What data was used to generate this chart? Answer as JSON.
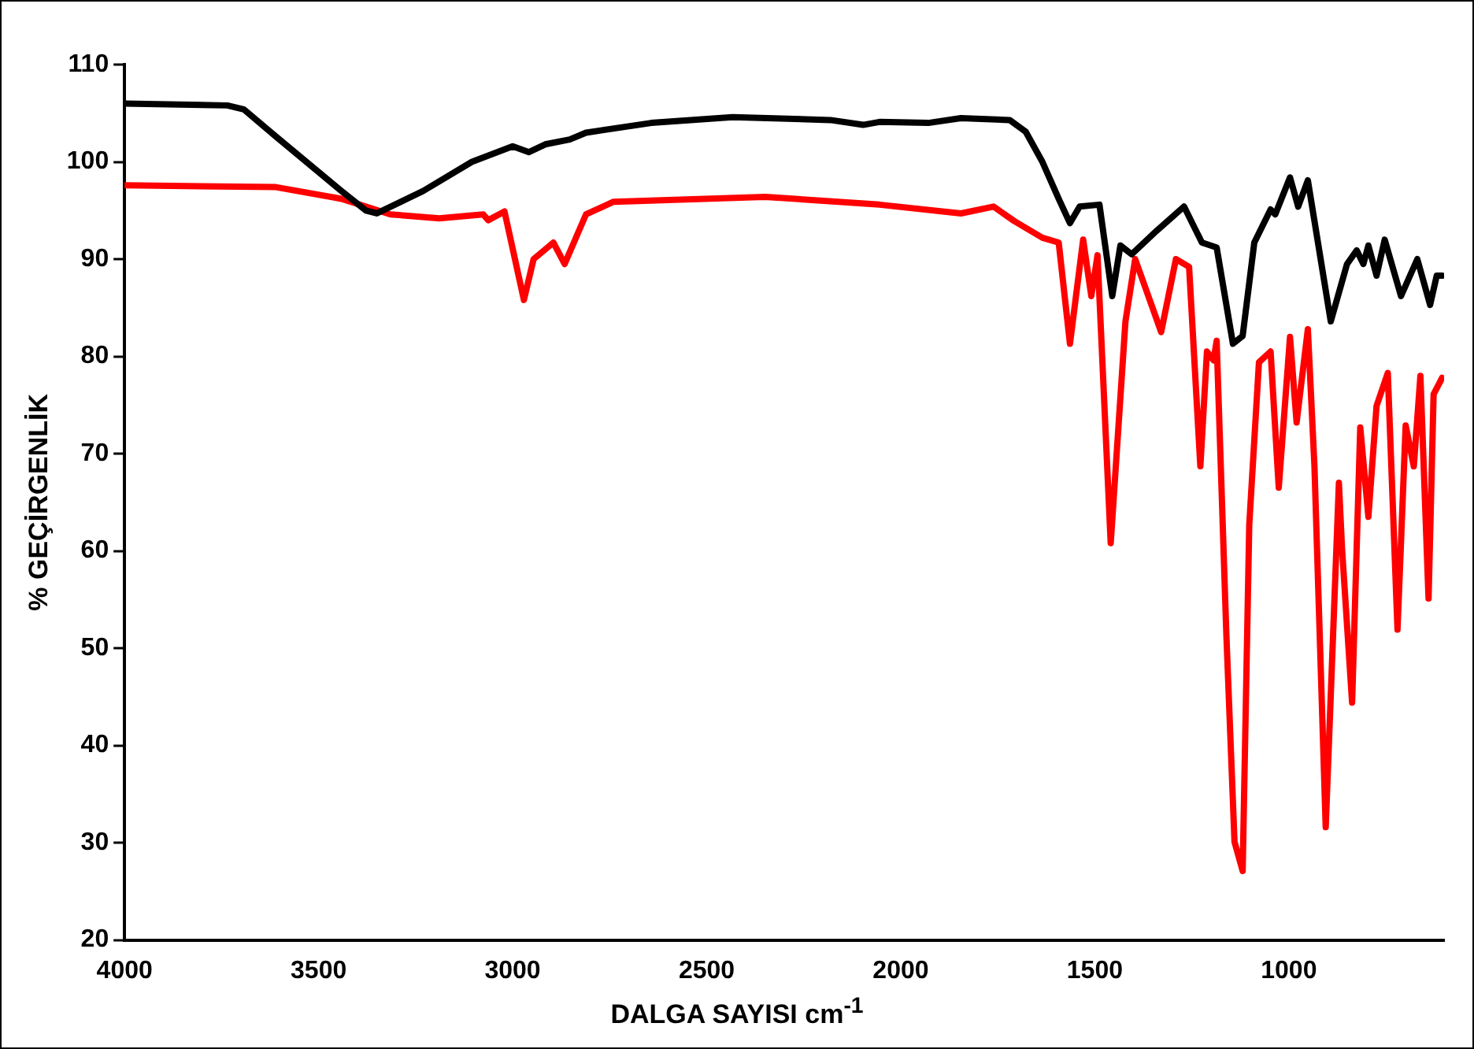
{
  "chart_data": {
    "type": "line",
    "xlabel": "DALGA SAYISI cm$^{-1}$",
    "ylabel": "% GEÇİRGENLİK",
    "xlim": [
      4000,
      600
    ],
    "xticks": [
      4000,
      3500,
      3000,
      2500,
      2000,
      1500,
      1000
    ],
    "ylim": [
      20,
      110
    ],
    "yticks": [
      20,
      30,
      40,
      50,
      60,
      70,
      80,
      90,
      100,
      110
    ],
    "grid": false,
    "legend": false,
    "marker": "none",
    "line_style": "solid",
    "series": [
      {
        "color": "#000000",
        "x": [
          4000,
          3735,
          3693,
          3610,
          3441,
          3378,
          3350,
          3231,
          3105,
          3000,
          2958,
          2916,
          2853,
          2811,
          2643,
          2433,
          2181,
          2097,
          2055,
          1929,
          1845,
          1719,
          1678,
          1635,
          1593,
          1564,
          1539,
          1488,
          1455,
          1434,
          1405,
          1341,
          1270,
          1224,
          1186,
          1144,
          1119,
          1089,
          1047,
          1035,
          997,
          976,
          951,
          892,
          850,
          825,
          808,
          795,
          774,
          753,
          711,
          669,
          636,
          619,
          605
        ],
        "values": [
          106,
          105.8,
          105.4,
          102.6,
          97,
          95,
          94.7,
          97,
          100,
          101.6,
          101,
          101.8,
          102.3,
          103,
          104,
          104.6,
          104.3,
          103.8,
          104.1,
          104,
          104.5,
          104.3,
          103.1,
          100,
          96.2,
          93.7,
          95.4,
          95.6,
          86.2,
          91.4,
          90.5,
          92.9,
          95.4,
          91.7,
          91.2,
          81.3,
          82.1,
          91.7,
          95.1,
          94.6,
          98.4,
          95.4,
          98.1,
          83.6,
          89.5,
          90.9,
          89.5,
          91.4,
          88.3,
          92,
          86.2,
          90,
          85.3,
          88.3,
          88.3
        ]
      },
      {
        "color": "#ff0000",
        "x": [
          4000,
          3610,
          3441,
          3315,
          3189,
          3076,
          3063,
          3021,
          2971,
          2946,
          2895,
          2866,
          2811,
          2740,
          2349,
          2055,
          1845,
          1761,
          1707,
          1635,
          1593,
          1564,
          1530,
          1509,
          1493,
          1459,
          1421,
          1396,
          1329,
          1291,
          1257,
          1228,
          1211,
          1194,
          1186,
          1161,
          1140,
          1119,
          1102,
          1077,
          1047,
          1026,
          997,
          980,
          951,
          934,
          905,
          871,
          863,
          837,
          816,
          795,
          774,
          745,
          720,
          699,
          678,
          661,
          640,
          627,
          605
        ],
        "values": [
          97.6,
          97.4,
          96.2,
          94.6,
          94.2,
          94.6,
          94,
          94.9,
          85.8,
          90,
          91.7,
          89.5,
          94.6,
          95.9,
          96.4,
          95.6,
          94.7,
          95.4,
          93.9,
          92.2,
          91.7,
          81.3,
          92,
          86.2,
          90.4,
          60.8,
          83.6,
          90,
          82.5,
          90,
          89.2,
          68.7,
          80.5,
          79.6,
          81.6,
          51.4,
          30.1,
          27.1,
          62.7,
          79.4,
          80.5,
          66.5,
          82,
          73.2,
          82.8,
          68.7,
          31.6,
          67,
          60.3,
          44.4,
          72.7,
          63.5,
          74.9,
          78.3,
          51.9,
          72.9,
          68.7,
          78,
          55.1,
          76.1,
          77.8
        ]
      }
    ]
  }
}
